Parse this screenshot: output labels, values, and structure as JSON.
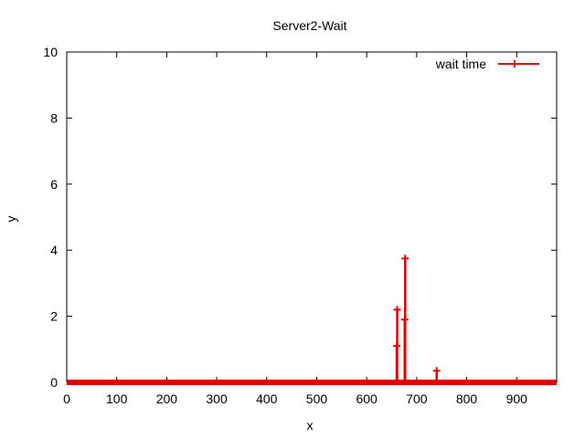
{
  "chart_data": {
    "type": "line",
    "title": "Server2-Wait",
    "xlabel": "x",
    "ylabel": "y",
    "xlim": [
      0,
      980
    ],
    "ylim": [
      0,
      10
    ],
    "xticks": [
      0,
      100,
      200,
      300,
      400,
      500,
      600,
      700,
      800,
      900
    ],
    "yticks": [
      0,
      2,
      4,
      6,
      8,
      10
    ],
    "grid": false,
    "legend_position": "top-right",
    "color": "#e00000",
    "series": [
      {
        "name": "wait time",
        "baseline": {
          "x_start": 0,
          "x_end": 980,
          "y": 0
        },
        "points": [
          {
            "x": 660,
            "y": 1.1
          },
          {
            "x": 661,
            "y": 2.2
          },
          {
            "x": 676,
            "y": 1.9
          },
          {
            "x": 677,
            "y": 3.75
          },
          {
            "x": 740,
            "y": 0.35
          }
        ]
      }
    ]
  }
}
